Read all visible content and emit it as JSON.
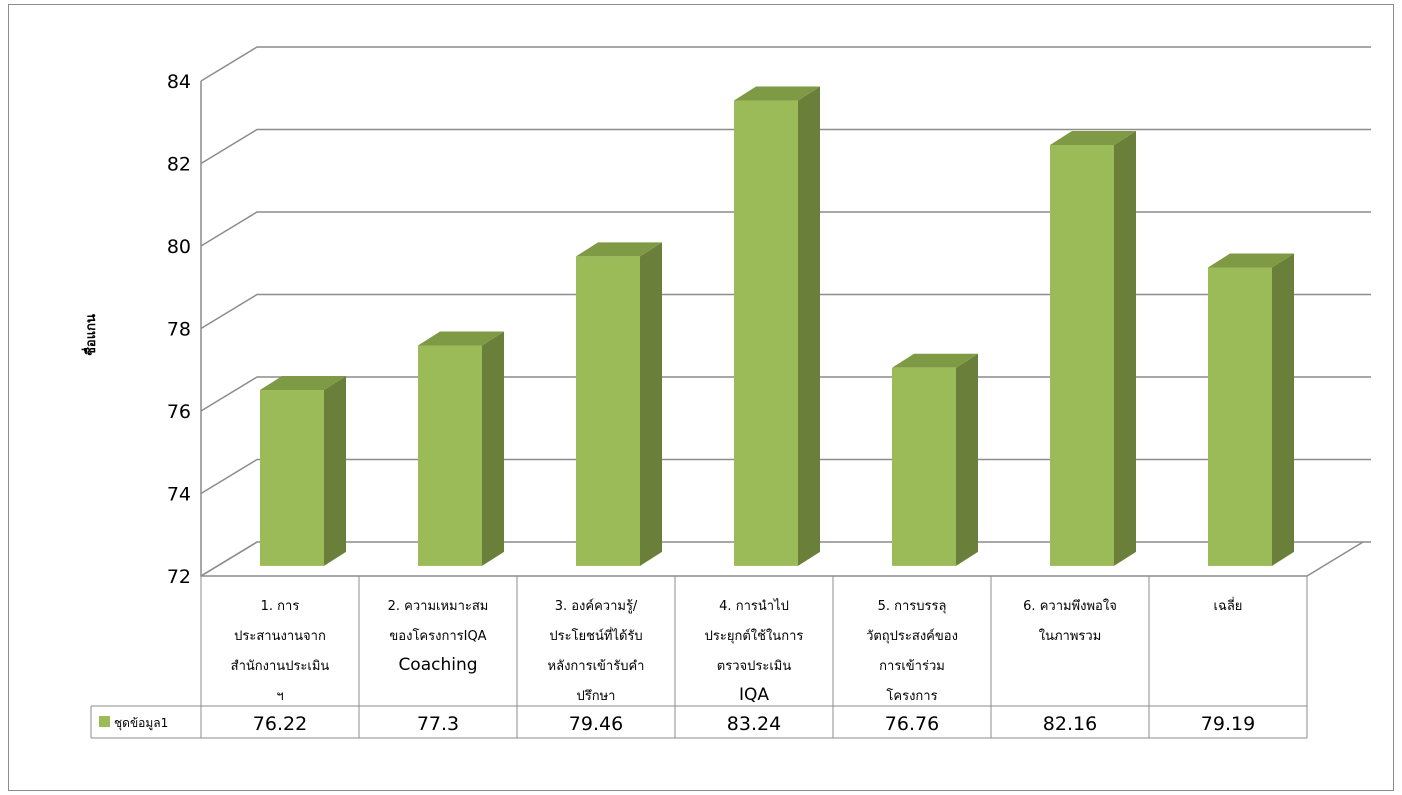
{
  "chart_data": {
    "type": "bar",
    "style": "3d-column-with-data-table",
    "ylabel": "ชื่อแกน",
    "ylim": [
      72,
      84
    ],
    "yticks": [
      "72",
      "74",
      "76",
      "78",
      "80",
      "82",
      "84"
    ],
    "grid": true,
    "categories": [
      [
        "1. การ",
        "ประสานงานจาก",
        "สำนักงานประเมิน",
        "ฯ"
      ],
      [
        "2. ความเหมาะสม",
        "ของโครงการIQA",
        "Coaching"
      ],
      [
        "3. องค์ความรู้/",
        "ประโยชน์ที่ได้รับ",
        "หลังการเข้ารับคำ",
        "ปรึกษา"
      ],
      [
        "4. การนำไป",
        "ประยุกต์ใช้ในการ",
        "ตรวจประเมิน",
        "IQA"
      ],
      [
        "5. การบรรลุ",
        "วัตถุประสงค์ของ",
        "การเข้าร่วม",
        "โครงการ"
      ],
      [
        "6. ความพึงพอใจ",
        "ในภาพรวม"
      ],
      [
        "เฉลี่ย"
      ]
    ],
    "series": [
      {
        "name": "ชุดข้อมูล1",
        "values": [
          76.22,
          77.3,
          79.46,
          83.24,
          76.76,
          82.16,
          79.19
        ],
        "value_labels": [
          "76.22",
          "77.3",
          "79.46",
          "83.24",
          "76.76",
          "82.16",
          "79.19"
        ],
        "color": "#9bbb59",
        "side_color": "#6a7f3a",
        "top_color": "#7f9a45"
      }
    ],
    "legend": "data-table"
  }
}
